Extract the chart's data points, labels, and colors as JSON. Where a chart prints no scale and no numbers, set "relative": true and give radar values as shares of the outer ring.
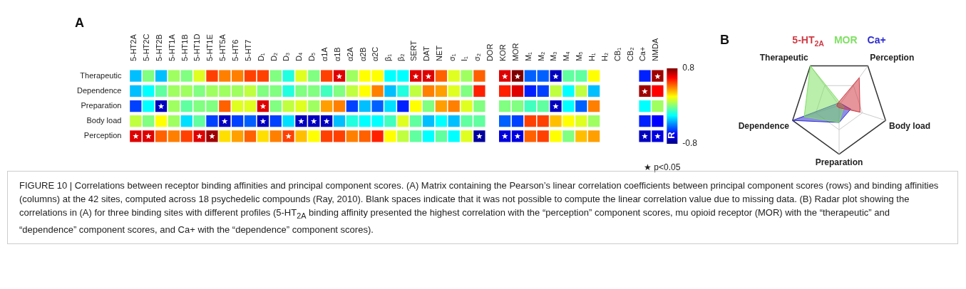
{
  "chart_data": [
    {
      "type": "heatmap",
      "title": "A",
      "categories": [
        "5-HT2A",
        "5-HT2C",
        "5-HT2B",
        "5-HT1A",
        "5-HT1B",
        "5-HT1D",
        "5-HT1E",
        "5-HT5A",
        "5-HT6",
        "5-HT7",
        "D₁",
        "D₂",
        "D₃",
        "D₄",
        "D₅",
        "α1A",
        "α1B",
        "α2A",
        "α2B",
        "α2C",
        "β₁",
        "β₂",
        "SERT",
        "DAT",
        "NET",
        "σ₁",
        "I₁",
        "σ₂",
        "DOR",
        "KOR",
        "MOR",
        "M₁",
        "M₂",
        "M₃",
        "M₄",
        "M₅",
        "H₁",
        "H₂",
        "CB₁",
        "CB₂",
        "Ca+",
        "NMDA"
      ],
      "y_categories": [
        "Therapeutic",
        "Dependence",
        "Preparation",
        "Body load",
        "Perception"
      ],
      "cells": [
        [
          -0.3,
          0,
          -0.3,
          0.05,
          0,
          0.15,
          0.5,
          0.4,
          0.4,
          0.5,
          0.5,
          0,
          -0.15,
          0.15,
          0,
          0.5,
          0.65,
          0.05,
          0.2,
          0.2,
          -0.2,
          -0.2,
          0.65,
          0.65,
          0.45,
          0.15,
          0.05,
          0.45,
          null,
          0.65,
          0.8,
          -0.45,
          -0.45,
          -0.7,
          -0.05,
          -0.05,
          0.2,
          null,
          null,
          null,
          -0.55,
          0.75
        ],
        [
          -0.3,
          -0.2,
          -0.05,
          0.05,
          0.05,
          0,
          0.05,
          0.05,
          0.05,
          0.1,
          0,
          0,
          -0.15,
          0,
          0,
          -0.1,
          0,
          0.1,
          0.2,
          0.4,
          -0.3,
          -0.15,
          0.1,
          0.4,
          0.35,
          0.15,
          0,
          0.55,
          null,
          0.55,
          0.65,
          -0.55,
          -0.5,
          0.1,
          -0.2,
          0.1,
          -0.3,
          null,
          null,
          null,
          0.75,
          0.6
        ],
        [
          -0.5,
          -0.2,
          -0.7,
          0.05,
          -0.05,
          0,
          0,
          0.45,
          0.15,
          0.15,
          0.65,
          0,
          0.1,
          0.15,
          0.05,
          0.35,
          0.4,
          -0.5,
          -0.3,
          -0.45,
          -0.25,
          -0.55,
          0.2,
          0,
          0.35,
          0.4,
          0.15,
          0,
          null,
          0,
          0,
          -0.1,
          -0.05,
          -0.7,
          -0.2,
          -0.45,
          0.4,
          null,
          null,
          null,
          -0.2,
          0.05
        ],
        [
          0.1,
          0,
          0.2,
          0.05,
          -0.25,
          -0.05,
          -0.5,
          -0.7,
          -0.5,
          -0.45,
          -0.7,
          -0.5,
          -0.25,
          -0.7,
          -0.7,
          -0.7,
          -0.3,
          -0.15,
          -0.2,
          -0.2,
          -0.1,
          0.15,
          -0.05,
          -0.3,
          -0.2,
          -0.3,
          -0.05,
          -0.05,
          null,
          -0.45,
          -0.5,
          0.5,
          0.5,
          0.3,
          0.2,
          0.15,
          0.05,
          null,
          null,
          null,
          -0.55,
          -0.6
        ],
        [
          0.65,
          0.65,
          0.45,
          0.4,
          0.5,
          0.65,
          0.75,
          0.25,
          0.35,
          0.45,
          0.25,
          0.4,
          0.5,
          0.3,
          0.2,
          0.5,
          0.5,
          0.4,
          0.45,
          0.55,
          0.2,
          0.1,
          -0.05,
          -0.2,
          -0.05,
          -0.2,
          0.15,
          -0.75,
          null,
          -0.65,
          -0.65,
          0.45,
          0.5,
          0.2,
          0,
          0.3,
          0.35,
          null,
          null,
          null,
          -0.7,
          -0.65
        ]
      ],
      "cell_labels": [
        [
          null,
          null,
          null,
          null,
          null,
          null,
          null,
          null,
          null,
          null,
          null,
          null,
          null,
          null,
          null,
          null,
          "★",
          null,
          null,
          null,
          null,
          null,
          "★",
          "★",
          null,
          null,
          null,
          null,
          null,
          "★",
          "★",
          null,
          null,
          "★",
          null,
          null,
          null,
          null,
          null,
          null,
          null,
          "★"
        ],
        [
          null,
          null,
          null,
          null,
          null,
          null,
          null,
          null,
          null,
          null,
          null,
          null,
          null,
          null,
          null,
          null,
          null,
          null,
          null,
          null,
          null,
          null,
          null,
          null,
          null,
          null,
          null,
          null,
          null,
          null,
          null,
          null,
          null,
          null,
          null,
          null,
          null,
          null,
          null,
          null,
          "★",
          null
        ],
        [
          null,
          null,
          "★",
          null,
          null,
          null,
          null,
          null,
          null,
          null,
          "★",
          null,
          null,
          null,
          null,
          null,
          null,
          null,
          null,
          null,
          null,
          null,
          null,
          null,
          null,
          null,
          null,
          null,
          null,
          null,
          null,
          null,
          null,
          "★",
          null,
          null,
          null,
          null,
          null,
          null,
          null,
          null
        ],
        [
          null,
          null,
          null,
          null,
          null,
          null,
          null,
          "★",
          null,
          null,
          "★",
          null,
          null,
          "★",
          "★",
          "★",
          null,
          null,
          null,
          null,
          null,
          null,
          null,
          null,
          null,
          null,
          null,
          null,
          null,
          null,
          null,
          null,
          null,
          null,
          null,
          null,
          null,
          null,
          null,
          null,
          null,
          null
        ],
        [
          "★",
          "★",
          null,
          null,
          null,
          "★",
          "★",
          null,
          null,
          null,
          null,
          null,
          "★",
          null,
          null,
          null,
          null,
          null,
          null,
          null,
          null,
          null,
          null,
          null,
          null,
          null,
          null,
          "★",
          null,
          "★",
          "★",
          null,
          null,
          null,
          null,
          null,
          null,
          null,
          null,
          null,
          "★",
          "★"
        ]
      ],
      "clim": [
        -0.8,
        0.8
      ],
      "cticks": [
        -0.8,
        0.8
      ],
      "clabel": "R",
      "annotations": [
        "★ p<0.05",
        "FIGURE 10 | Correlations between receptor binding affinities and principal component scores. (A) Matrix containing the Pearson’s linear correlation coefficients between principal component scores (rows) and binding affinities (columns) at the 42 sites, computed across 18 psychedelic compounds (Ray, 2010). Blank spaces indicate that it was not possible to compute the linear correlation value due to missing data. (B) Radar plot showing the correlations in (A) for three binding sites with different profiles (5-HT$_{2A}$ binding affinity presented the highest correlation with the “perception” component scores, mu opioid receptor (MOR) with the “therapeutic” and “dependence” component scores, and Ca+ with the “dependence” component scores)."
      ]
    },
    {
      "type": "radar",
      "title": "B",
      "relative": true,
      "legend": "top",
      "categories": [
        "Therapeutic",
        "Perception",
        "Body load",
        "Preparation",
        "Dependence"
      ],
      "series": [
        {
          "name": "5-HT$_{2A}$",
          "color": "#d03a44",
          "values": [
            0.05,
            0.7,
            0.45,
            0.05,
            0.05
          ]
        },
        {
          "name": "MOR",
          "color": "#7ee062",
          "values": [
            1.0,
            0.05,
            0.1,
            0.35,
            0.75
          ]
        },
        {
          "name": "Ca+",
          "color": "#2a2ad0",
          "values": [
            0.05,
            0.05,
            0.25,
            0.35,
            1.0
          ]
        }
      ]
    }
  ]
}
